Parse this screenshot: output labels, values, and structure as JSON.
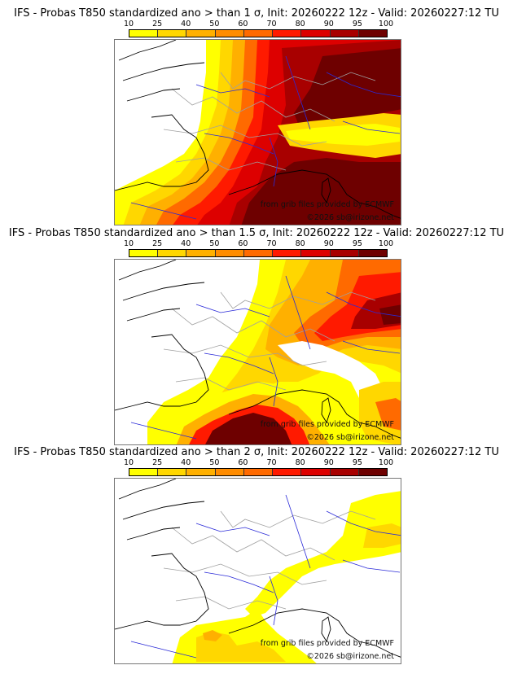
{
  "colorbar": {
    "ticks": [
      "10",
      "25",
      "40",
      "50",
      "60",
      "70",
      "80",
      "90",
      "95",
      "100"
    ],
    "colors": [
      "#ffff00",
      "#ffd700",
      "#ffb000",
      "#ff8c00",
      "#ff6a00",
      "#ff1a00",
      "#dd0000",
      "#a80000",
      "#6e0000"
    ]
  },
  "panels": [
    {
      "title": "IFS - Probas T850  standardized ano > than 1 σ, Init: 20260222 12z - Valid: 20260227:12 TU",
      "threshold_sigma": 1,
      "credit_source": "from grib files provided by ECMWF",
      "credit_copyright": "©2026 sb@irizone.net"
    },
    {
      "title": "IFS - Probas T850  standardized ano > than 1.5 σ, Init: 20260222 12z - Valid: 20260227:12 TU",
      "threshold_sigma": 1.5,
      "credit_source": "from grib files provided by ECMWF",
      "credit_copyright": "©2026 sb@irizone.net"
    },
    {
      "title": "IFS - Probas T850  standardized ano > than 2 σ, Init: 20260222 12z - Valid: 20260227:12 TU",
      "threshold_sigma": 2,
      "credit_source": "from grib files provided by ECMWF",
      "credit_copyright": "©2026 sb@irizone.net"
    }
  ],
  "colors": {
    "coast": "#000000",
    "rivers": "#2a2ad8",
    "borders": "#a0a0a0"
  }
}
